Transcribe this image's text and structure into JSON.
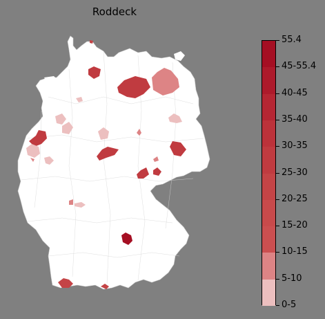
{
  "title": "Roddeck",
  "legend": {
    "labels": [
      "55.4",
      "45-55.4",
      "40-45",
      "35-40",
      "30-35",
      "25-30",
      "20-25",
      "15-20",
      "10-15",
      "5-10",
      "0-5"
    ],
    "colors": [
      "#a50f23",
      "#ad1a2b",
      "#b52633",
      "#bc323a",
      "#c03b40",
      "#c44446",
      "#c84a4b",
      "#cb4f50",
      "#dd8485",
      "#ecbfbf",
      "#ffffff"
    ]
  },
  "colors": {
    "background": "#808080",
    "land": "#ffffff",
    "border_lines": "#d4d4d4"
  },
  "regions": [
    {
      "name": "north-small",
      "color": "#c44446"
    },
    {
      "name": "schleswig",
      "color": "#c03b40"
    },
    {
      "name": "mecklenburg",
      "color": "#c03b40"
    },
    {
      "name": "vorpommern",
      "color": "#dd8485"
    },
    {
      "name": "bremen-area",
      "color": "#ecbfbf"
    },
    {
      "name": "osnabrueck",
      "color": "#ecbfbf"
    },
    {
      "name": "muenster",
      "color": "#c03b40"
    },
    {
      "name": "ruhr",
      "color": "#ecbfbf"
    },
    {
      "name": "aachen",
      "color": "#ecbfbf"
    },
    {
      "name": "koeln",
      "color": "#dd8485"
    },
    {
      "name": "hannover",
      "color": "#ecbfbf"
    },
    {
      "name": "goettingen",
      "color": "#c03b40"
    },
    {
      "name": "harz",
      "color": "#dd8485"
    },
    {
      "name": "berlin-east",
      "color": "#ecbfbf"
    },
    {
      "name": "dresden-north",
      "color": "#c03b40"
    },
    {
      "name": "leipzig",
      "color": "#c03b40"
    },
    {
      "name": "chemnitz",
      "color": "#c03b40"
    },
    {
      "name": "plauen",
      "color": "#dd8485"
    },
    {
      "name": "lower-small",
      "color": "#ecbfbf"
    },
    {
      "name": "mannheim",
      "color": "#dd8485"
    },
    {
      "name": "frankfurt",
      "color": "#ecbfbf"
    },
    {
      "name": "ingolstadt",
      "color": "#a50f23"
    },
    {
      "name": "bodensee",
      "color": "#c44446"
    },
    {
      "name": "allgaeu",
      "color": "#c44446"
    }
  ]
}
